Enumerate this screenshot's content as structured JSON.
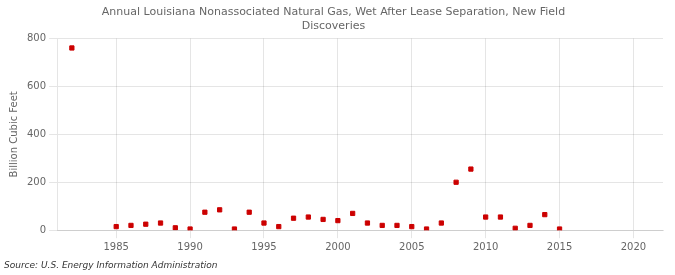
{
  "chart_data": {
    "type": "scatter",
    "title": "Annual Louisiana Nonassociated Natural Gas, Wet After Lease Separation, New Field\nDiscoveries",
    "ylabel": "Billion Cubic Feet",
    "source": "Source: U.S. Energy Information Administration",
    "x": [
      1982,
      1985,
      1986,
      1987,
      1988,
      1989,
      1990,
      1991,
      1992,
      1993,
      1994,
      1995,
      1996,
      1997,
      1998,
      1999,
      2000,
      2001,
      2002,
      2003,
      2004,
      2005,
      2006,
      2007,
      2008,
      2009,
      2010,
      2011,
      2012,
      2013,
      2014,
      2015
    ],
    "values": [
      760,
      15,
      20,
      25,
      30,
      10,
      5,
      75,
      85,
      5,
      75,
      30,
      15,
      50,
      55,
      45,
      40,
      70,
      30,
      20,
      20,
      15,
      5,
      30,
      200,
      255,
      55,
      55,
      8,
      20,
      65,
      5
    ],
    "color": "#cc0000",
    "marker": "square",
    "xlim": [
      1981,
      2022
    ],
    "xticks": [
      1985,
      1990,
      1995,
      2000,
      2005,
      2010,
      2015,
      2020
    ],
    "ylim": [
      0,
      800
    ],
    "yticks": [
      0,
      200,
      400,
      600,
      800
    ],
    "grid": true
  }
}
